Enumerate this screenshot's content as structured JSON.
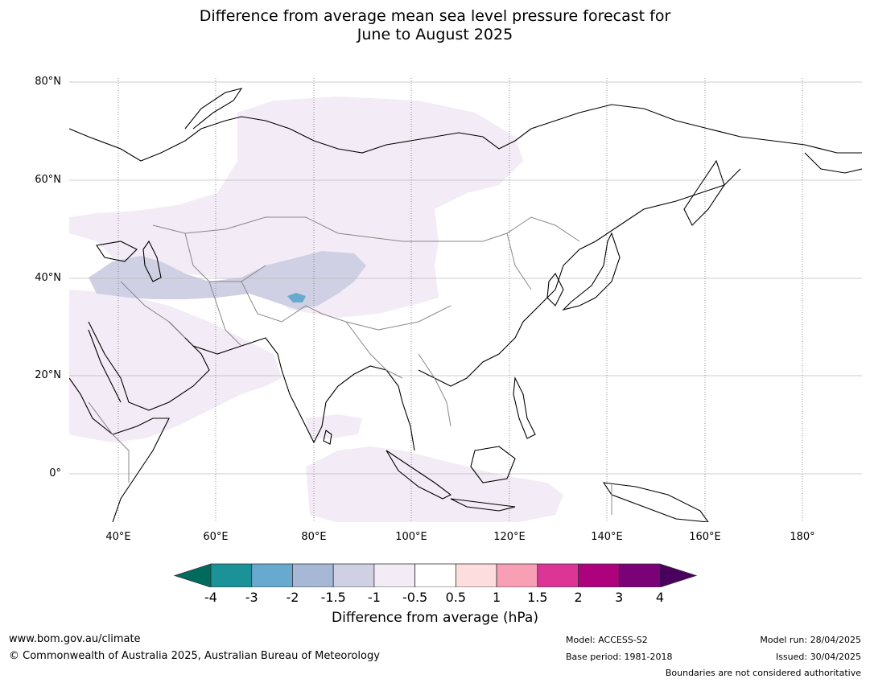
{
  "title": {
    "line1": "Difference from average mean sea level pressure forecast for",
    "line2": "June to August 2025"
  },
  "axes": {
    "lat_labels": [
      "80°N",
      "60°N",
      "40°N",
      "20°N",
      "0°"
    ],
    "lon_labels": [
      "40°E",
      "60°E",
      "80°E",
      "100°E",
      "120°E",
      "140°E",
      "160°E",
      "180°"
    ]
  },
  "colorbar": {
    "title": "Difference from average (hPa)",
    "ticks": [
      "-4",
      "-3",
      "-2",
      "-1.5",
      "-1",
      "-0.5",
      "0.5",
      "1",
      "1.5",
      "2",
      "3",
      "4"
    ],
    "colors": [
      "#006a5e",
      "#1b9198",
      "#67a9cf",
      "#a6b8d6",
      "#cfd0e4",
      "#f3ebf5",
      "#ffffff",
      "#fdddde",
      "#f89fb6",
      "#dc3595",
      "#ad017e",
      "#7a0178",
      "#4b0060"
    ]
  },
  "footer": {
    "website": "www.bom.gov.au/climate",
    "copyright": "© Commonwealth of Australia 2025, Australian Bureau of Meteorology",
    "model": "Model: ACCESS-S2",
    "base_period": "Base period: 1981-2018",
    "model_run": "Model run: 28/04/2025",
    "issued": "Issued: 30/04/2025",
    "disclaimer": "Boundaries are not considered authoritative"
  },
  "map": {
    "region": "Asia",
    "lon_range": [
      30,
      192
    ],
    "lat_range": [
      -10,
      81
    ]
  }
}
